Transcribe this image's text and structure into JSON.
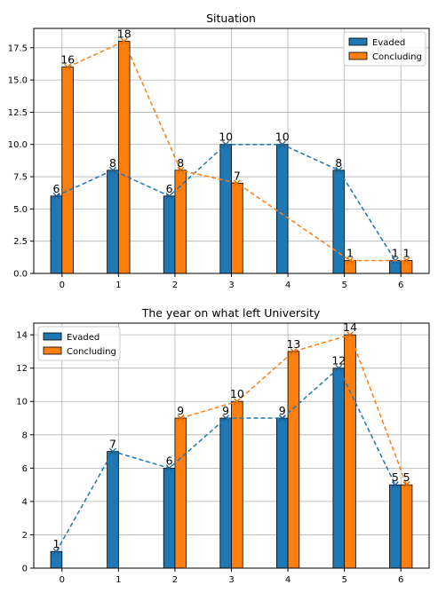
{
  "chart_data": [
    {
      "type": "bar",
      "title": "Situation",
      "categories": [
        "0",
        "1",
        "2",
        "3",
        "4",
        "5",
        "6"
      ],
      "series": [
        {
          "name": "Evaded",
          "color": "#1f77b4",
          "values": [
            6,
            8,
            6,
            10,
            10,
            8,
            1
          ]
        },
        {
          "name": "Concluding",
          "color": "#ff7f0e",
          "values": [
            16,
            18,
            8,
            7,
            null,
            1,
            1
          ]
        }
      ],
      "overlay": "dashed line with x markers connecting bar tops per series",
      "ylim": [
        0,
        19
      ],
      "yticks": [
        "0.0",
        "2.5",
        "5.0",
        "7.5",
        "10.0",
        "12.5",
        "15.0",
        "17.5"
      ],
      "legend": "top-right",
      "grid": true
    },
    {
      "type": "bar",
      "title": "The year on what left University",
      "categories": [
        "0",
        "1",
        "2",
        "3",
        "4",
        "5",
        "6"
      ],
      "series": [
        {
          "name": "Evaded",
          "color": "#1f77b4",
          "values": [
            1,
            7,
            6,
            9,
            9,
            12,
            5
          ]
        },
        {
          "name": "Concluding",
          "color": "#ff7f0e",
          "values": [
            null,
            null,
            9,
            10,
            13,
            14,
            5
          ]
        }
      ],
      "overlay": "dashed line with x markers connecting bar tops per series",
      "ylim": [
        0,
        14.7
      ],
      "yticks": [
        "0",
        "2",
        "4",
        "6",
        "8",
        "10",
        "12",
        "14"
      ],
      "legend": "top-left",
      "grid": true
    }
  ]
}
